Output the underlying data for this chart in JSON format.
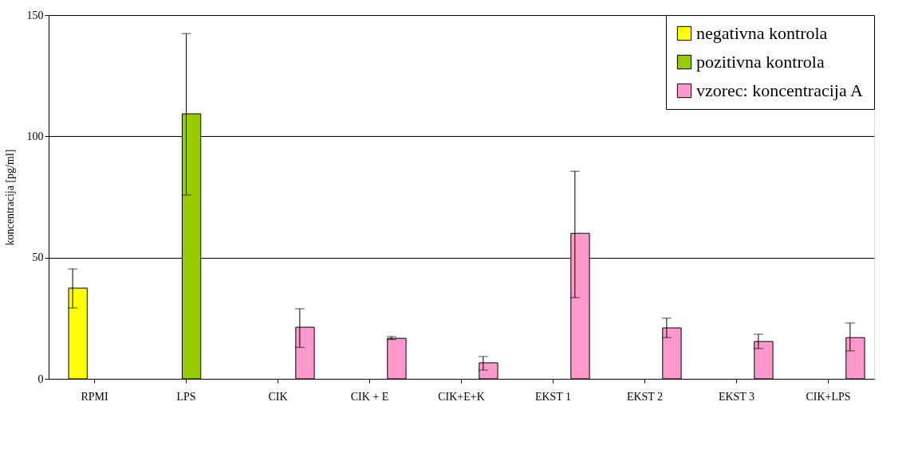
{
  "chart_data": {
    "type": "bar",
    "ylabel": "koncentracija [pg/ml]",
    "categories": [
      "RPMI",
      "LPS",
      "CIK",
      "CIK + E",
      "CIK+E+K",
      "EKST 1",
      "EKST 2",
      "EKST 3",
      "CIK+LPS"
    ],
    "series": [
      {
        "name": "negativna kontrola",
        "color": "#ffff00",
        "values": [
          37.4,
          null,
          null,
          null,
          null,
          null,
          null,
          null,
          null
        ],
        "errors": [
          [
            29.2,
            45.3
          ],
          null,
          null,
          null,
          null,
          null,
          null,
          null,
          null
        ]
      },
      {
        "name": "pozitivna kontrola",
        "color": "#99cc00",
        "values": [
          null,
          109.3,
          null,
          null,
          null,
          null,
          null,
          null,
          null
        ],
        "errors": [
          null,
          [
            75.8,
            142.4
          ],
          null,
          null,
          null,
          null,
          null,
          null,
          null
        ]
      },
      {
        "name": "vzorec: koncentracija A",
        "color": "#ff99cc",
        "values": [
          null,
          null,
          21.3,
          16.7,
          6.6,
          60,
          21,
          15.4,
          17
        ],
        "errors": [
          null,
          null,
          [
            13,
            28.9
          ],
          [
            16.2,
            17.4
          ],
          [
            3.6,
            9.2
          ],
          [
            33.5,
            85.6
          ],
          [
            17,
            25
          ],
          [
            12.5,
            18.4
          ],
          [
            11.5,
            23
          ]
        ]
      }
    ],
    "ylim": [
      0,
      150
    ],
    "yticks": [
      0,
      50,
      100,
      150
    ],
    "grid": "y",
    "legend": "top right"
  }
}
